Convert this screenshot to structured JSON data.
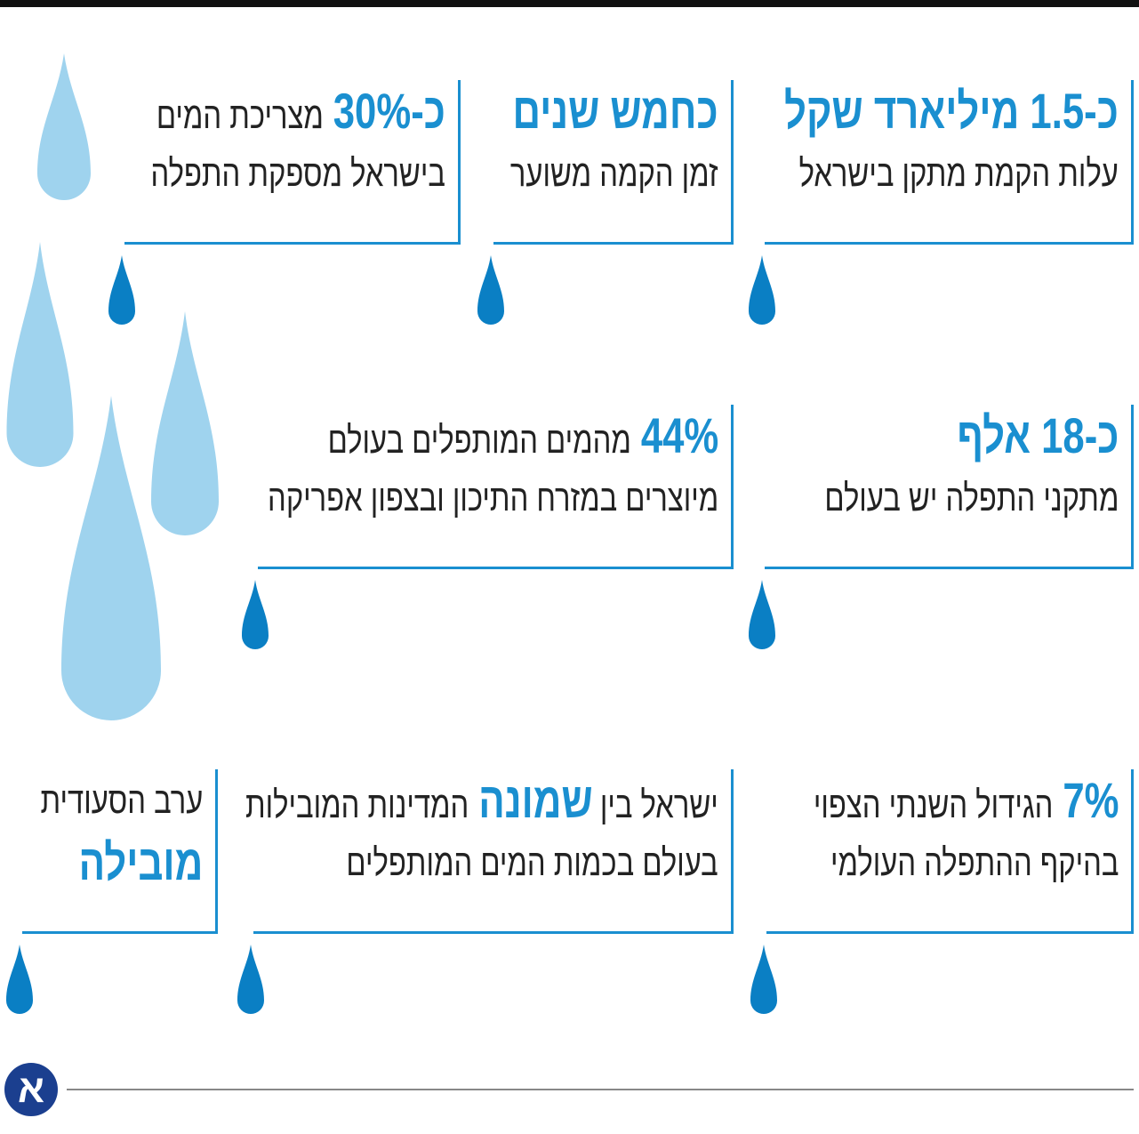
{
  "items": [
    {
      "lines": [
        [
          {
            "text": "כ-1.5 מיליארד שקל",
            "em": true
          }
        ],
        [
          {
            "text": "עלות הקמת מתקן בישראל"
          }
        ]
      ]
    },
    {
      "lines": [
        [
          {
            "text": "כחמש שנים",
            "em": true
          }
        ],
        [
          {
            "text": "זמן הקמה משוער"
          }
        ]
      ]
    },
    {
      "lines": [
        [
          {
            "text": "כ-30%",
            "em": true
          },
          {
            "text": "מצריכת המים"
          }
        ],
        [
          {
            "text": "בישראל מספקת התפלה"
          }
        ]
      ]
    },
    {
      "lines": [
        [
          {
            "text": "כ-18 אלף",
            "em": true
          }
        ],
        [
          {
            "text": "מתקני התפלה יש בעולם"
          }
        ]
      ]
    },
    {
      "lines": [
        [
          {
            "text": "44%",
            "em": true
          },
          {
            "text": "מהמים המותפלים בעולם"
          }
        ],
        [
          {
            "text": "מיוצרים במזרח התיכון ובצפון אפריקה"
          }
        ]
      ]
    },
    {
      "lines": [
        [
          {
            "text": "7%",
            "em": true
          },
          {
            "text": "הגידול השנתי הצפוי"
          }
        ],
        [
          {
            "text": "בהיקף ההתפלה העולמי"
          }
        ]
      ]
    },
    {
      "lines": [
        [
          {
            "text": "ישראל בין"
          },
          {
            "text": "שמונה",
            "em": true
          },
          {
            "text": "המדינות המובילות"
          }
        ],
        [
          {
            "text": "בעולם בכמות המים המותפלים"
          }
        ]
      ]
    },
    {
      "lines": [
        [
          {
            "text": "ערב הסעודית"
          }
        ],
        [
          {
            "text": "מובילה",
            "em": true
          }
        ]
      ]
    }
  ],
  "logo": "א"
}
